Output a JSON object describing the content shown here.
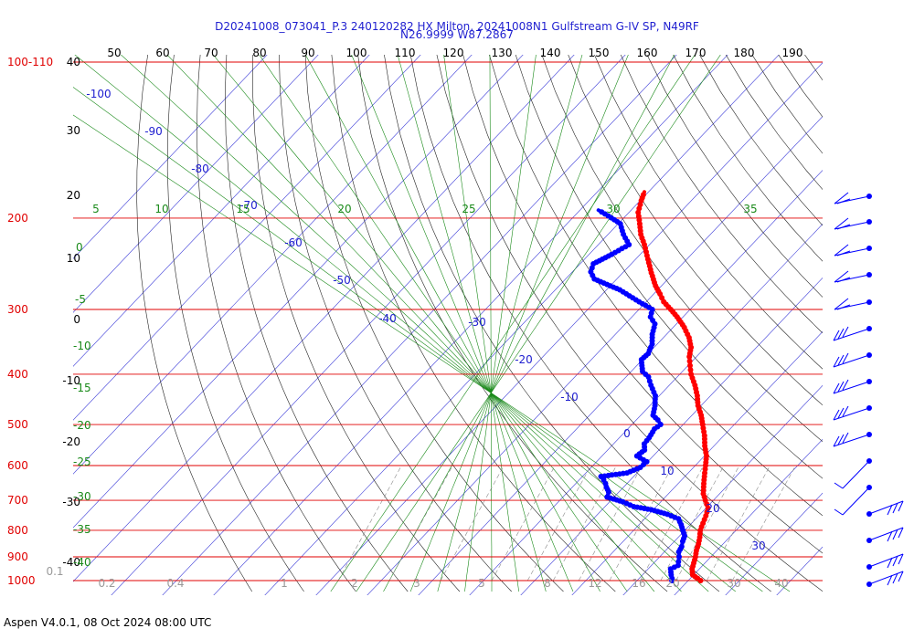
{
  "header": {
    "title_line1": "D20241008_073041_P.3 240120282 HX Milton, 20241008N1 Gulfstream G-IV SP, N49RF",
    "title_line2": "N26.9999 W87.2867"
  },
  "footer": {
    "text": "Aspen V4.0.1, 08 Oct 2024  08:00 UTC"
  },
  "chart_data": {
    "type": "line",
    "pressure_levels": [
      {
        "label": "100-110",
        "p": 100
      },
      {
        "label": "200",
        "p": 200
      },
      {
        "label": "300",
        "p": 300
      },
      {
        "label": "400",
        "p": 400
      },
      {
        "label": "500",
        "p": 500
      },
      {
        "label": "600",
        "p": 600
      },
      {
        "label": "700",
        "p": 700
      },
      {
        "label": "800",
        "p": 800
      },
      {
        "label": "900",
        "p": 900
      },
      {
        "label": "1000",
        "p": 1000
      }
    ],
    "top_axis_labels": [
      "50",
      "60",
      "70",
      "80",
      "90",
      "100",
      "110",
      "120",
      "130",
      "140",
      "150",
      "160",
      "170",
      "180",
      "190"
    ],
    "left_axis_labels": [
      "40",
      "30",
      "20",
      "10",
      "0",
      "-10",
      "-20",
      "-30",
      "-40"
    ],
    "temp_isotherm_labels": [
      "-100",
      "-90",
      "-80",
      "-70",
      "-60",
      "-50",
      "-40",
      "-30",
      "-20",
      "-10",
      "0",
      "10",
      "20",
      "30"
    ],
    "green_line_labels": [
      "5",
      "10",
      "15",
      "20",
      "25",
      "30",
      "35",
      "0",
      "-5",
      "-10",
      "-15",
      "-20",
      "-25",
      "-30",
      "-35",
      "-40"
    ],
    "mixing_ratio_labels": [
      "0.1",
      "0.2",
      "0.4",
      "1",
      "2",
      "3",
      "5",
      "8",
      "12",
      "16",
      "20",
      "30",
      "40"
    ],
    "series": [
      {
        "color": "#ff0000",
        "points": [
          [
            1000,
            25.8
          ],
          [
            990,
            24.8
          ],
          [
            975,
            23.2
          ],
          [
            950,
            22.0
          ],
          [
            925,
            21.2
          ],
          [
            900,
            20.4
          ],
          [
            875,
            19.4
          ],
          [
            850,
            18.6
          ],
          [
            825,
            17.6
          ],
          [
            800,
            16.4
          ],
          [
            775,
            15.6
          ],
          [
            750,
            14.8
          ],
          [
            725,
            13.8
          ],
          [
            700,
            11.8
          ],
          [
            680,
            10.2
          ],
          [
            650,
            8.4
          ],
          [
            620,
            6.6
          ],
          [
            600,
            5.4
          ],
          [
            575,
            3.8
          ],
          [
            550,
            1.6
          ],
          [
            525,
            -0.4
          ],
          [
            500,
            -2.8
          ],
          [
            480,
            -4.8
          ],
          [
            460,
            -7.2
          ],
          [
            440,
            -9.2
          ],
          [
            420,
            -11.6
          ],
          [
            400,
            -14.4
          ],
          [
            385,
            -16.2
          ],
          [
            370,
            -18.0
          ],
          [
            355,
            -19.4
          ],
          [
            340,
            -21.6
          ],
          [
            325,
            -24.4
          ],
          [
            310,
            -27.8
          ],
          [
            300,
            -30.4
          ],
          [
            290,
            -33.2
          ],
          [
            280,
            -35.4
          ],
          [
            270,
            -37.8
          ],
          [
            255,
            -41.0
          ],
          [
            240,
            -44.2
          ],
          [
            225,
            -47.6
          ],
          [
            215,
            -50.2
          ],
          [
            205,
            -52.4
          ],
          [
            195,
            -54.8
          ],
          [
            185,
            -56.4
          ],
          [
            178,
            -57.4
          ]
        ]
      },
      {
        "color": "#0000ff",
        "points": [
          [
            1000,
            20.2
          ],
          [
            990,
            19.8
          ],
          [
            975,
            19.0
          ],
          [
            950,
            17.8
          ],
          [
            935,
            18.6
          ],
          [
            920,
            18.0
          ],
          [
            900,
            17.2
          ],
          [
            880,
            16.2
          ],
          [
            860,
            15.8
          ],
          [
            840,
            15.0
          ],
          [
            820,
            14.4
          ],
          [
            800,
            13.0
          ],
          [
            780,
            11.6
          ],
          [
            760,
            10.0
          ],
          [
            745,
            7.0
          ],
          [
            730,
            3.0
          ],
          [
            720,
            -1.0
          ],
          [
            705,
            -4.0
          ],
          [
            690,
            -8.0
          ],
          [
            675,
            -8.6
          ],
          [
            660,
            -10.0
          ],
          [
            650,
            -10.8
          ],
          [
            640,
            -11.8
          ],
          [
            630,
            -13.0
          ],
          [
            620,
            -8.6
          ],
          [
            605,
            -7.0
          ],
          [
            590,
            -6.8
          ],
          [
            575,
            -9.8
          ],
          [
            560,
            -9.4
          ],
          [
            545,
            -10.6
          ],
          [
            530,
            -10.8
          ],
          [
            510,
            -11.4
          ],
          [
            500,
            -11.0
          ],
          [
            490,
            -12.4
          ],
          [
            480,
            -14.2
          ],
          [
            460,
            -15.6
          ],
          [
            440,
            -17.4
          ],
          [
            420,
            -20.2
          ],
          [
            405,
            -22.2
          ],
          [
            395,
            -24.4
          ],
          [
            385,
            -25.6
          ],
          [
            375,
            -26.8
          ],
          [
            365,
            -26.6
          ],
          [
            350,
            -27.6
          ],
          [
            335,
            -29.4
          ],
          [
            320,
            -30.8
          ],
          [
            310,
            -33.0
          ],
          [
            300,
            -34.0
          ],
          [
            290,
            -38.0
          ],
          [
            275,
            -44.0
          ],
          [
            262,
            -51.0
          ],
          [
            254,
            -53.0
          ],
          [
            245,
            -54.0
          ],
          [
            235,
            -52.2
          ],
          [
            225,
            -50.6
          ],
          [
            215,
            -53.6
          ],
          [
            205,
            -56.2
          ],
          [
            198,
            -60.0
          ],
          [
            193,
            -63.0
          ]
        ]
      }
    ]
  }
}
